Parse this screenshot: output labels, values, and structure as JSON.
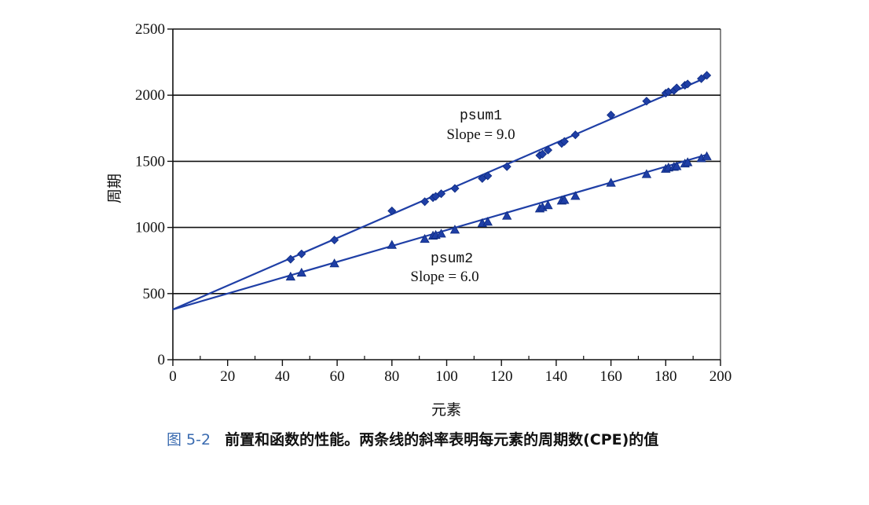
{
  "figure": {
    "number": "图 5-2",
    "caption": "前置和函数的性能。两条线的斜率表明每元素的周期数(CPE)的值"
  },
  "colors": {
    "series": "#1f3fa6",
    "grid": "#111111",
    "axis": "#111111"
  },
  "chart_data": {
    "type": "scatter",
    "xlabel": "元素",
    "ylabel": "周期",
    "xlim": [
      0,
      200
    ],
    "ylim": [
      0,
      2500
    ],
    "xticks": [
      0,
      20,
      40,
      60,
      80,
      100,
      120,
      140,
      160,
      180,
      200
    ],
    "yticks": [
      0,
      500,
      1000,
      1500,
      2000,
      2500
    ],
    "grid": "horizontal",
    "series": [
      {
        "name": "psum1",
        "slope_label": "Slope = 9.0",
        "marker": "diamond",
        "fit": {
          "slope": 9.0,
          "intercept": 380
        },
        "x": [
          43,
          47,
          59,
          80,
          92,
          95,
          96,
          98,
          103,
          113,
          115,
          122,
          134,
          135,
          137,
          142,
          143,
          147,
          160,
          173,
          180,
          181,
          183,
          184,
          187,
          188,
          193,
          195
        ],
        "y": [
          760,
          800,
          905,
          1125,
          1195,
          1225,
          1235,
          1255,
          1295,
          1370,
          1390,
          1460,
          1545,
          1555,
          1585,
          1635,
          1650,
          1700,
          1850,
          1955,
          2015,
          2025,
          2035,
          2055,
          2075,
          2085,
          2125,
          2150
        ]
      },
      {
        "name": "psum2",
        "slope_label": "Slope = 6.0",
        "marker": "triangle",
        "fit": {
          "slope": 6.0,
          "intercept": 380
        },
        "x": [
          43,
          47,
          59,
          80,
          92,
          95,
          96,
          98,
          103,
          113,
          115,
          122,
          134,
          135,
          137,
          142,
          143,
          147,
          160,
          173,
          180,
          181,
          183,
          184,
          187,
          188,
          193,
          195
        ],
        "y": [
          625,
          655,
          725,
          865,
          910,
          935,
          940,
          950,
          980,
          1030,
          1040,
          1085,
          1140,
          1150,
          1165,
          1200,
          1205,
          1235,
          1335,
          1400,
          1440,
          1450,
          1455,
          1460,
          1480,
          1490,
          1520,
          1535
        ]
      }
    ]
  }
}
